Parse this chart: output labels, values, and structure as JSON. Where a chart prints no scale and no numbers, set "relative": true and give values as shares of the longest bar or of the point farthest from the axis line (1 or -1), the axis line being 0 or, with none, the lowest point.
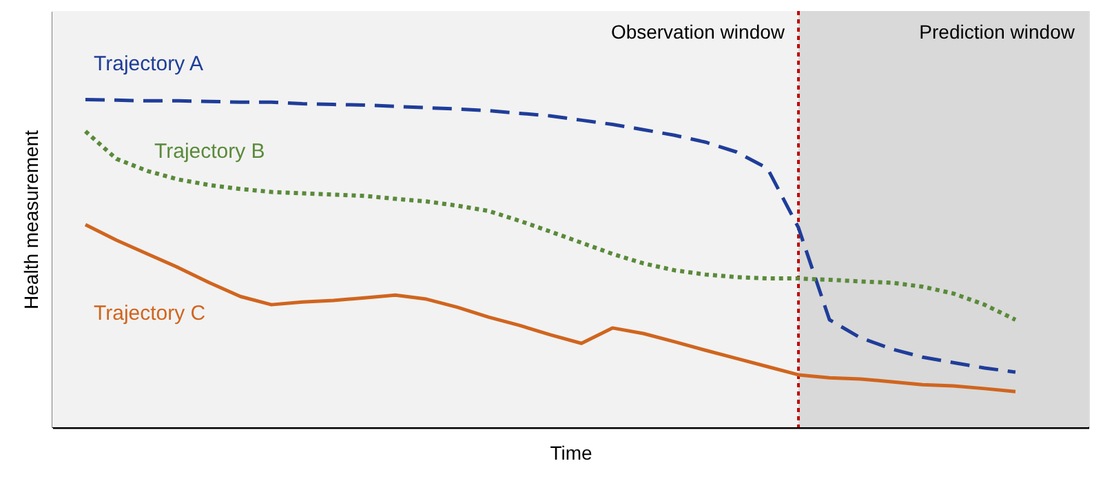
{
  "chart_data": {
    "type": "line",
    "relative": true,
    "xlabel": "Time",
    "ylabel": "Health measurement",
    "legend": false,
    "tick_labels": false,
    "annotations": [
      "Observation window",
      "Prediction window"
    ],
    "categories": [
      null,
      null,
      null,
      null,
      null,
      null,
      null,
      null,
      null,
      null,
      null,
      null,
      null,
      null,
      null,
      null,
      null,
      null,
      null,
      null,
      null,
      null,
      null,
      null,
      null,
      null,
      null,
      null,
      null,
      null,
      null
    ],
    "series": [
      {
        "name": "Trajectory A",
        "color": "#1f3d99",
        "line_style": "dashed",
        "values": [
          1.0,
          0.998,
          0.996,
          0.996,
          0.994,
          0.992,
          0.992,
          0.987,
          0.985,
          0.983,
          0.979,
          0.975,
          0.971,
          0.966,
          0.958,
          0.95,
          0.937,
          0.924,
          0.908,
          0.891,
          0.87,
          0.84,
          0.79,
          0.609,
          0.328,
          0.273,
          0.239,
          0.214,
          0.197,
          0.181,
          0.168
        ]
      },
      {
        "name": "Trajectory B",
        "color": "#5a8a3a",
        "line_style": "dotted",
        "values": [
          0.903,
          0.819,
          0.782,
          0.756,
          0.739,
          0.727,
          0.718,
          0.714,
          0.71,
          0.706,
          0.697,
          0.689,
          0.676,
          0.66,
          0.63,
          0.597,
          0.563,
          0.529,
          0.5,
          0.479,
          0.466,
          0.458,
          0.454,
          0.454,
          0.45,
          0.445,
          0.441,
          0.429,
          0.408,
          0.374,
          0.328
        ]
      },
      {
        "name": "Trajectory C",
        "color": "#d0651e",
        "line_style": "solid",
        "values": [
          0.618,
          0.571,
          0.529,
          0.487,
          0.441,
          0.399,
          0.374,
          0.382,
          0.387,
          0.395,
          0.403,
          0.391,
          0.366,
          0.336,
          0.311,
          0.282,
          0.256,
          0.303,
          0.286,
          0.261,
          0.235,
          0.21,
          0.185,
          0.16,
          0.151,
          0.147,
          0.139,
          0.13,
          0.126,
          0.118,
          0.109
        ]
      }
    ]
  }
}
